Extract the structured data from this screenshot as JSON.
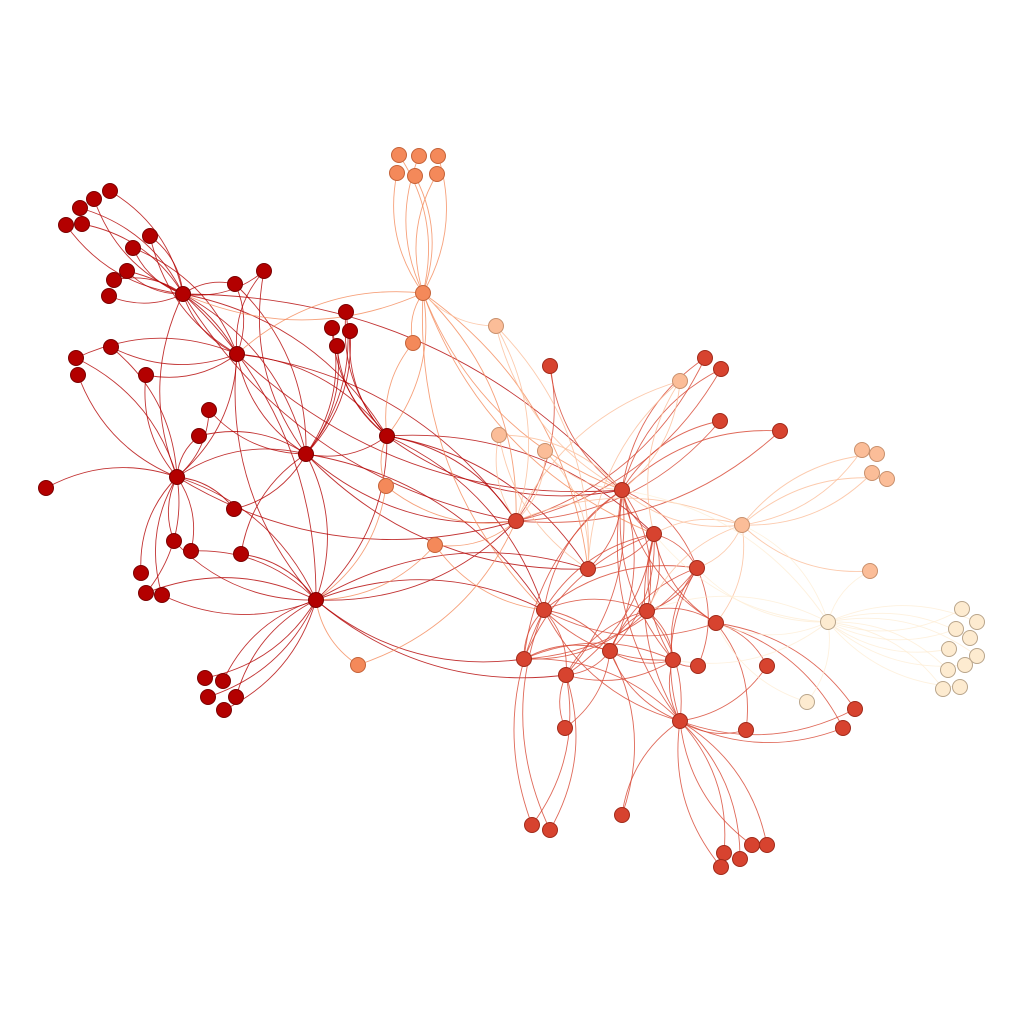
{
  "graph": {
    "type": "force-directed-network",
    "background": "#ffffff",
    "groups": [
      {
        "id": 1,
        "fill": "#b30000",
        "stroke": "#7a0000"
      },
      {
        "id": 2,
        "fill": "#d7432f",
        "stroke": "#a02a1a"
      },
      {
        "id": 3,
        "fill": "#f4895a",
        "stroke": "#c46238"
      },
      {
        "id": 4,
        "fill": "#fbbd98",
        "stroke": "#c8906d"
      },
      {
        "id": 5,
        "fill": "#fdebd0",
        "stroke": "#b9a58b"
      }
    ],
    "node_count": 130,
    "edge_count": 300
  }
}
